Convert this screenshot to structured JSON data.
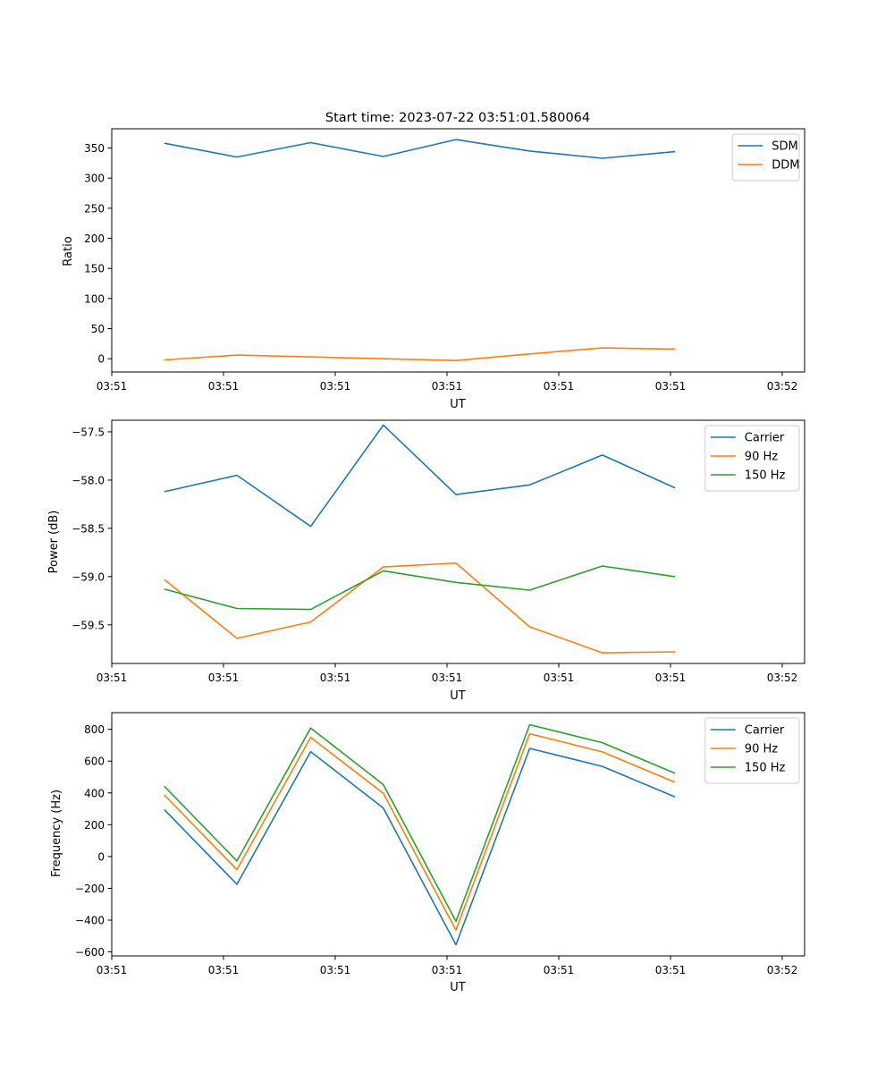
{
  "chart_data": [
    {
      "type": "line",
      "title": "Start time: 2023-07-22 03:51:01.580064",
      "xlabel": "UT",
      "ylabel": "Ratio",
      "xlim": [
        0,
        6.2
      ],
      "ylim": [
        -22,
        382
      ],
      "x_tick_values": [
        0,
        1,
        2,
        3,
        4,
        5,
        6
      ],
      "x_tick_labels": [
        "03:51",
        "03:51",
        "03:51",
        "03:51",
        "03:51",
        "03:51",
        "03:52"
      ],
      "y_ticks": [
        0,
        50,
        100,
        150,
        200,
        250,
        300,
        350
      ],
      "x": [
        0.47,
        1.12,
        1.78,
        2.43,
        3.08,
        3.74,
        4.39,
        5.04
      ],
      "series": [
        {
          "name": "SDM",
          "color": "#1f77b4",
          "values": [
            358,
            335,
            359,
            336,
            364,
            345,
            333,
            344
          ]
        },
        {
          "name": "DDM",
          "color": "#ff7f0e",
          "values": [
            -2,
            6,
            3,
            0,
            -3,
            8,
            18,
            16
          ]
        }
      ],
      "legend": "top-right"
    },
    {
      "type": "line",
      "title": "",
      "xlabel": "UT",
      "ylabel": "Power (dB)",
      "xlim": [
        0,
        6.2
      ],
      "ylim": [
        -59.9,
        -57.38
      ],
      "x_tick_values": [
        0,
        1,
        2,
        3,
        4,
        5,
        6
      ],
      "x_tick_labels": [
        "03:51",
        "03:51",
        "03:51",
        "03:51",
        "03:51",
        "03:51",
        "03:52"
      ],
      "y_ticks": [
        -59.5,
        -59.0,
        -58.5,
        -58.0,
        -57.5
      ],
      "y_tick_labels": [
        "−59.5",
        "−59.0",
        "−58.5",
        "−58.0",
        "−57.5"
      ],
      "x": [
        0.47,
        1.12,
        1.78,
        2.43,
        3.08,
        3.74,
        4.39,
        5.04
      ],
      "series": [
        {
          "name": "Carrier",
          "color": "#1f77b4",
          "values": [
            -58.12,
            -57.95,
            -58.48,
            -57.43,
            -58.15,
            -58.05,
            -57.74,
            -58.08
          ]
        },
        {
          "name": "90 Hz",
          "color": "#ff7f0e",
          "values": [
            -59.03,
            -59.64,
            -59.47,
            -58.9,
            -58.86,
            -59.52,
            -59.79,
            -59.78
          ]
        },
        {
          "name": "150 Hz",
          "color": "#2ca02c",
          "values": [
            -59.13,
            -59.33,
            -59.34,
            -58.94,
            -59.06,
            -59.14,
            -58.89,
            -59.0
          ]
        }
      ],
      "legend": "top-right"
    },
    {
      "type": "line",
      "title": "",
      "xlabel": "UT",
      "ylabel": "Frequency (Hz)",
      "xlim": [
        0,
        6.2
      ],
      "ylim": [
        -625,
        905
      ],
      "x_tick_values": [
        0,
        1,
        2,
        3,
        4,
        5,
        6
      ],
      "x_tick_labels": [
        "03:51",
        "03:51",
        "03:51",
        "03:51",
        "03:51",
        "03:51",
        "03:52"
      ],
      "y_ticks": [
        -600,
        -400,
        -200,
        0,
        200,
        400,
        600,
        800
      ],
      "y_tick_labels": [
        "−600",
        "−400",
        "−200",
        "0",
        "200",
        "400",
        "600",
        "800"
      ],
      "x": [
        0.47,
        1.12,
        1.78,
        2.43,
        3.08,
        3.74,
        4.39,
        5.04
      ],
      "series": [
        {
          "name": "Carrier",
          "color": "#1f77b4",
          "values": [
            295,
            -175,
            660,
            305,
            -555,
            680,
            567,
            375
          ]
        },
        {
          "name": "90 Hz",
          "color": "#ff7f0e",
          "values": [
            387,
            -83,
            750,
            397,
            -463,
            772,
            658,
            467
          ]
        },
        {
          "name": "150 Hz",
          "color": "#2ca02c",
          "values": [
            442,
            -28,
            808,
            452,
            -408,
            829,
            716,
            524
          ]
        }
      ],
      "legend": "top-right"
    }
  ]
}
